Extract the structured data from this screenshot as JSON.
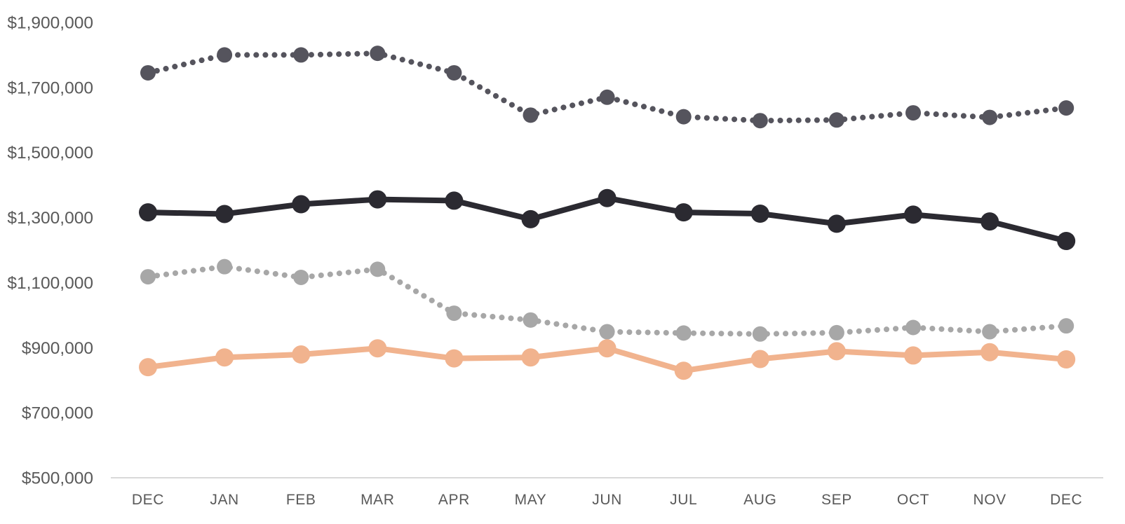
{
  "chart_data": {
    "type": "line",
    "categories": [
      "DEC",
      "JAN",
      "FEB",
      "MAR",
      "APR",
      "MAY",
      "JUN",
      "JUL",
      "AUG",
      "SEP",
      "OCT",
      "NOV",
      "DEC"
    ],
    "series": [
      {
        "name": "dark-dotted-series",
        "color": "#55545d",
        "line_style": "dotted",
        "values": [
          1745000,
          1800000,
          1800000,
          1805000,
          1745000,
          1615000,
          1670000,
          1610000,
          1598000,
          1600000,
          1622000,
          1608000,
          1637000
        ]
      },
      {
        "name": "black-solid-series",
        "color": "#2b2a31",
        "line_style": "solid",
        "values": [
          1316000,
          1311000,
          1341000,
          1356000,
          1352000,
          1295000,
          1360000,
          1316000,
          1312000,
          1281000,
          1309000,
          1288000,
          1228000
        ]
      },
      {
        "name": "gray-dotted-series",
        "color": "#a7a7a7",
        "line_style": "dotted",
        "values": [
          1118000,
          1149000,
          1116000,
          1141000,
          1006000,
          985000,
          949000,
          945000,
          942000,
          946000,
          962000,
          949000,
          967000
        ]
      },
      {
        "name": "peach-solid-series",
        "color": "#f1b38e",
        "line_style": "solid",
        "values": [
          840000,
          870000,
          879000,
          898000,
          867000,
          870000,
          898000,
          829000,
          865000,
          889000,
          876000,
          886000,
          864000
        ]
      }
    ],
    "title": "",
    "xlabel": "",
    "ylabel": "",
    "ylim": [
      500000,
      1900000
    ],
    "y_ticks": [
      500000,
      700000,
      900000,
      1100000,
      1300000,
      1500000,
      1700000,
      1900000
    ],
    "y_tick_labels": [
      "$500,000",
      "$700,000",
      "$900,000",
      "$1,100,000",
      "$1,300,000",
      "$1,500,000",
      "$1,700,000",
      "$1,900,000"
    ],
    "grid": false,
    "legend": false,
    "axis_line_color": "#d9d9d9",
    "tick_label_color": "#595959"
  }
}
